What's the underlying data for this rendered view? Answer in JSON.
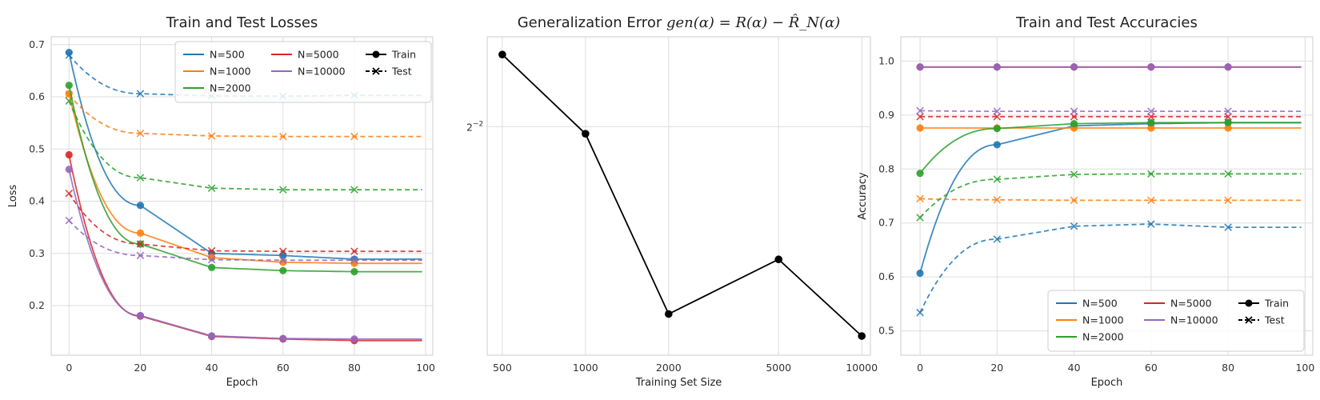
{
  "colors": {
    "N=500": "#1f77b4",
    "N=1000": "#ff7f0e",
    "N=2000": "#2ca02c",
    "N=5000": "#d62728",
    "N=10000": "#9467bd",
    "grid": "#dddddd",
    "spine": "#cccccc"
  },
  "chart_data": [
    {
      "type": "line",
      "title": "Train and Test Losses",
      "xlabel": "Epoch",
      "ylabel": "Loss",
      "xlim": [
        -5,
        102
      ],
      "ylim": [
        0.105,
        0.715
      ],
      "xticks": [
        "0",
        "20",
        "40",
        "60",
        "80",
        "100"
      ],
      "yticks": [
        "0.2",
        "0.3",
        "0.4",
        "0.5",
        "0.6",
        "0.7"
      ],
      "legend": {
        "position": "top-right",
        "series_entries": [
          "N=500",
          "N=1000",
          "N=2000",
          "N=5000",
          "N=10000"
        ],
        "style_entries": [
          "Train",
          "Test"
        ]
      },
      "marker_epochs": [
        0,
        20,
        40,
        60,
        80
      ],
      "series": [
        {
          "name": "N=500",
          "split": "Train",
          "values": [
            0.685,
            0.392,
            0.3,
            0.296,
            0.289
          ]
        },
        {
          "name": "N=500",
          "split": "Test",
          "values": [
            0.68,
            0.606,
            0.602,
            0.601,
            0.603
          ]
        },
        {
          "name": "N=1000",
          "split": "Train",
          "values": [
            0.606,
            0.339,
            0.292,
            0.283,
            0.281
          ]
        },
        {
          "name": "N=1000",
          "split": "Test",
          "values": [
            0.604,
            0.53,
            0.525,
            0.524,
            0.524
          ]
        },
        {
          "name": "N=2000",
          "split": "Train",
          "values": [
            0.622,
            0.318,
            0.273,
            0.267,
            0.265
          ]
        },
        {
          "name": "N=2000",
          "split": "Test",
          "values": [
            0.592,
            0.445,
            0.425,
            0.422,
            0.422
          ]
        },
        {
          "name": "N=5000",
          "split": "Train",
          "values": [
            0.489,
            0.18,
            0.141,
            0.136,
            0.133
          ]
        },
        {
          "name": "N=5000",
          "split": "Test",
          "values": [
            0.415,
            0.318,
            0.305,
            0.304,
            0.304
          ]
        },
        {
          "name": "N=10000",
          "split": "Train",
          "values": [
            0.461,
            0.181,
            0.142,
            0.137,
            0.136
          ]
        },
        {
          "name": "N=10000",
          "split": "Test",
          "values": [
            0.363,
            0.296,
            0.288,
            0.287,
            0.287
          ]
        }
      ]
    },
    {
      "type": "line",
      "title": "Generalization Error",
      "title_math": "gen(α) = R(α) − R̂_N(α)",
      "xlabel": "Training Set Size",
      "ylabel": "",
      "x_scale": "log",
      "y_scale": "log2",
      "categories": [
        "500",
        "1000",
        "2000",
        "5000",
        "10000"
      ],
      "values": [
        0.335,
        0.243,
        0.117,
        0.146,
        0.107
      ],
      "yticks": [
        {
          "value": 0.25,
          "base": "2",
          "exp": "−2"
        }
      ],
      "grid": true
    },
    {
      "type": "line",
      "title": "Train and Test Accuracies",
      "xlabel": "Epoch",
      "ylabel": "Accuracy",
      "xlim": [
        -5,
        102
      ],
      "ylim": [
        0.455,
        1.045
      ],
      "xticks": [
        "0",
        "20",
        "40",
        "60",
        "80",
        "100"
      ],
      "yticks": [
        "0.5",
        "0.6",
        "0.7",
        "0.8",
        "0.9",
        "1.0"
      ],
      "legend": {
        "position": "bottom-right",
        "series_entries": [
          "N=500",
          "N=1000",
          "N=2000",
          "N=5000",
          "N=10000"
        ],
        "style_entries": [
          "Train",
          "Test"
        ]
      },
      "marker_epochs": [
        0,
        20,
        40,
        60,
        80
      ],
      "series": [
        {
          "name": "N=500",
          "split": "Train",
          "values": [
            0.607,
            0.845,
            0.88,
            0.884,
            0.886
          ]
        },
        {
          "name": "N=500",
          "split": "Test",
          "values": [
            0.534,
            0.67,
            0.694,
            0.698,
            0.692
          ]
        },
        {
          "name": "N=1000",
          "split": "Train",
          "values": [
            0.876,
            0.876,
            0.876,
            0.876,
            0.876
          ]
        },
        {
          "name": "N=1000",
          "split": "Test",
          "values": [
            0.745,
            0.743,
            0.742,
            0.742,
            0.742
          ]
        },
        {
          "name": "N=2000",
          "split": "Train",
          "values": [
            0.792,
            0.875,
            0.884,
            0.886,
            0.886
          ]
        },
        {
          "name": "N=2000",
          "split": "Test",
          "values": [
            0.71,
            0.781,
            0.79,
            0.791,
            0.791
          ]
        },
        {
          "name": "N=5000",
          "split": "Train",
          "values": [
            0.989,
            0.989,
            0.989,
            0.989,
            0.989
          ]
        },
        {
          "name": "N=5000",
          "split": "Test",
          "values": [
            0.897,
            0.897,
            0.897,
            0.897,
            0.897
          ]
        },
        {
          "name": "N=10000",
          "split": "Train",
          "values": [
            0.989,
            0.989,
            0.989,
            0.989,
            0.989
          ]
        },
        {
          "name": "N=10000",
          "split": "Test",
          "values": [
            0.908,
            0.907,
            0.907,
            0.907,
            0.907
          ]
        }
      ]
    }
  ]
}
